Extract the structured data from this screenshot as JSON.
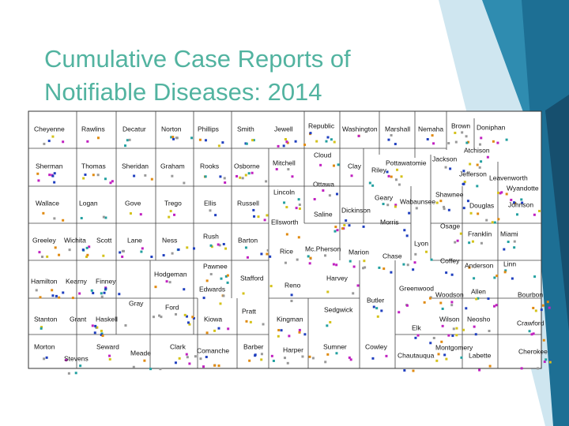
{
  "title": "Cumulative Case Reports of Notifiable Diseases: 2014",
  "counties": [
    "Cheyenne",
    "Rawlins",
    "Decatur",
    "Norton",
    "Phillips",
    "Smith",
    "Jewell",
    "Republic",
    "Washington",
    "Marshall",
    "Nemaha",
    "Brown",
    "Doniphan",
    "Atchison",
    "Jackson",
    "Cloud",
    "Sherman",
    "Thomas",
    "Sheridan",
    "Graham",
    "Rooks",
    "Osborne",
    "Mitchell",
    "Clay",
    "Riley",
    "Pottawatomie",
    "Jefferson",
    "Leavenworth",
    "Wyandotte",
    "Ottawa",
    "Lincoln",
    "Geary",
    "Shawnee",
    "Wabaunsee",
    "Douglas",
    "Johnson",
    "Wallace",
    "Logan",
    "Gove",
    "Trego",
    "Ellis",
    "Russell",
    "Saline",
    "Dickinson",
    "Ellsworth",
    "Morris",
    "Osage",
    "Franklin",
    "Miami",
    "Greeley",
    "Wichita",
    "Scott",
    "Lane",
    "Ness",
    "Rush",
    "Barton",
    "Lyon",
    "Rice",
    "Mc.Pherson",
    "Marion",
    "Chase",
    "Coffey",
    "Anderson",
    "Linn",
    "Pawnee",
    "Hodgeman",
    "Stafford",
    "Harvey",
    "Hamilton",
    "Kearny",
    "Finney",
    "Reno",
    "Greenwood",
    "Allen",
    "Woodson",
    "Bourbon",
    "Edwards",
    "Gray",
    "Ford",
    "Butler",
    "Pratt",
    "Sedgwick",
    "Stanton",
    "Grant",
    "Haskell",
    "Kiowa",
    "Kingman",
    "Wilson",
    "Neosho",
    "Crawford",
    "Elk",
    "Morton",
    "Seward",
    "Clark",
    "Barber",
    "Harper",
    "Sumner",
    "Cowley",
    "Montgomery",
    "Cherokee",
    "Meade",
    "Comanche",
    "Chautauqua",
    "Labette",
    "Stevens"
  ]
}
